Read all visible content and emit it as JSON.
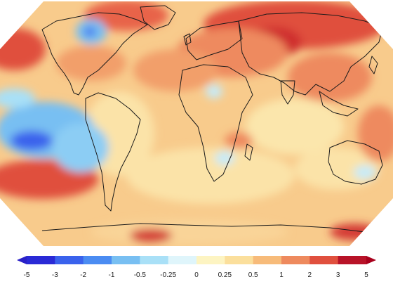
{
  "map": {
    "projection": "robinson",
    "variable": "temperature anomaly",
    "continent_outline_color": "#1a1a1a"
  },
  "legend": {
    "tick_labels": [
      "-5",
      "-3",
      "-2",
      "-1",
      "-0.5",
      "-0.25",
      "0",
      "0.25",
      "0.5",
      "1",
      "2",
      "3",
      "5"
    ],
    "bins": [
      {
        "from": "-5",
        "to": "-3",
        "color": "#2a2ad6"
      },
      {
        "from": "-3",
        "to": "-2",
        "color": "#3a62ec"
      },
      {
        "from": "-2",
        "to": "-1",
        "color": "#4b8cf2"
      },
      {
        "from": "-1",
        "to": "-0.5",
        "color": "#78bff2"
      },
      {
        "from": "-0.5",
        "to": "-0.25",
        "color": "#a9e0f7"
      },
      {
        "from": "-0.25",
        "to": "0",
        "color": "#dff5fb"
      },
      {
        "from": "0",
        "to": "0.25",
        "color": "#fdf4c2"
      },
      {
        "from": "0.25",
        "to": "0.5",
        "color": "#fbdf9c"
      },
      {
        "from": "0.5",
        "to": "1",
        "color": "#f7bb7a"
      },
      {
        "from": "1",
        "to": "2",
        "color": "#ee8a5e"
      },
      {
        "from": "2",
        "to": "3",
        "color": "#e0503e"
      },
      {
        "from": "3",
        "to": "5",
        "color": "#b81328"
      }
    ],
    "extend_low_color": "#2a20c8",
    "extend_high_color": "#a8001c"
  }
}
